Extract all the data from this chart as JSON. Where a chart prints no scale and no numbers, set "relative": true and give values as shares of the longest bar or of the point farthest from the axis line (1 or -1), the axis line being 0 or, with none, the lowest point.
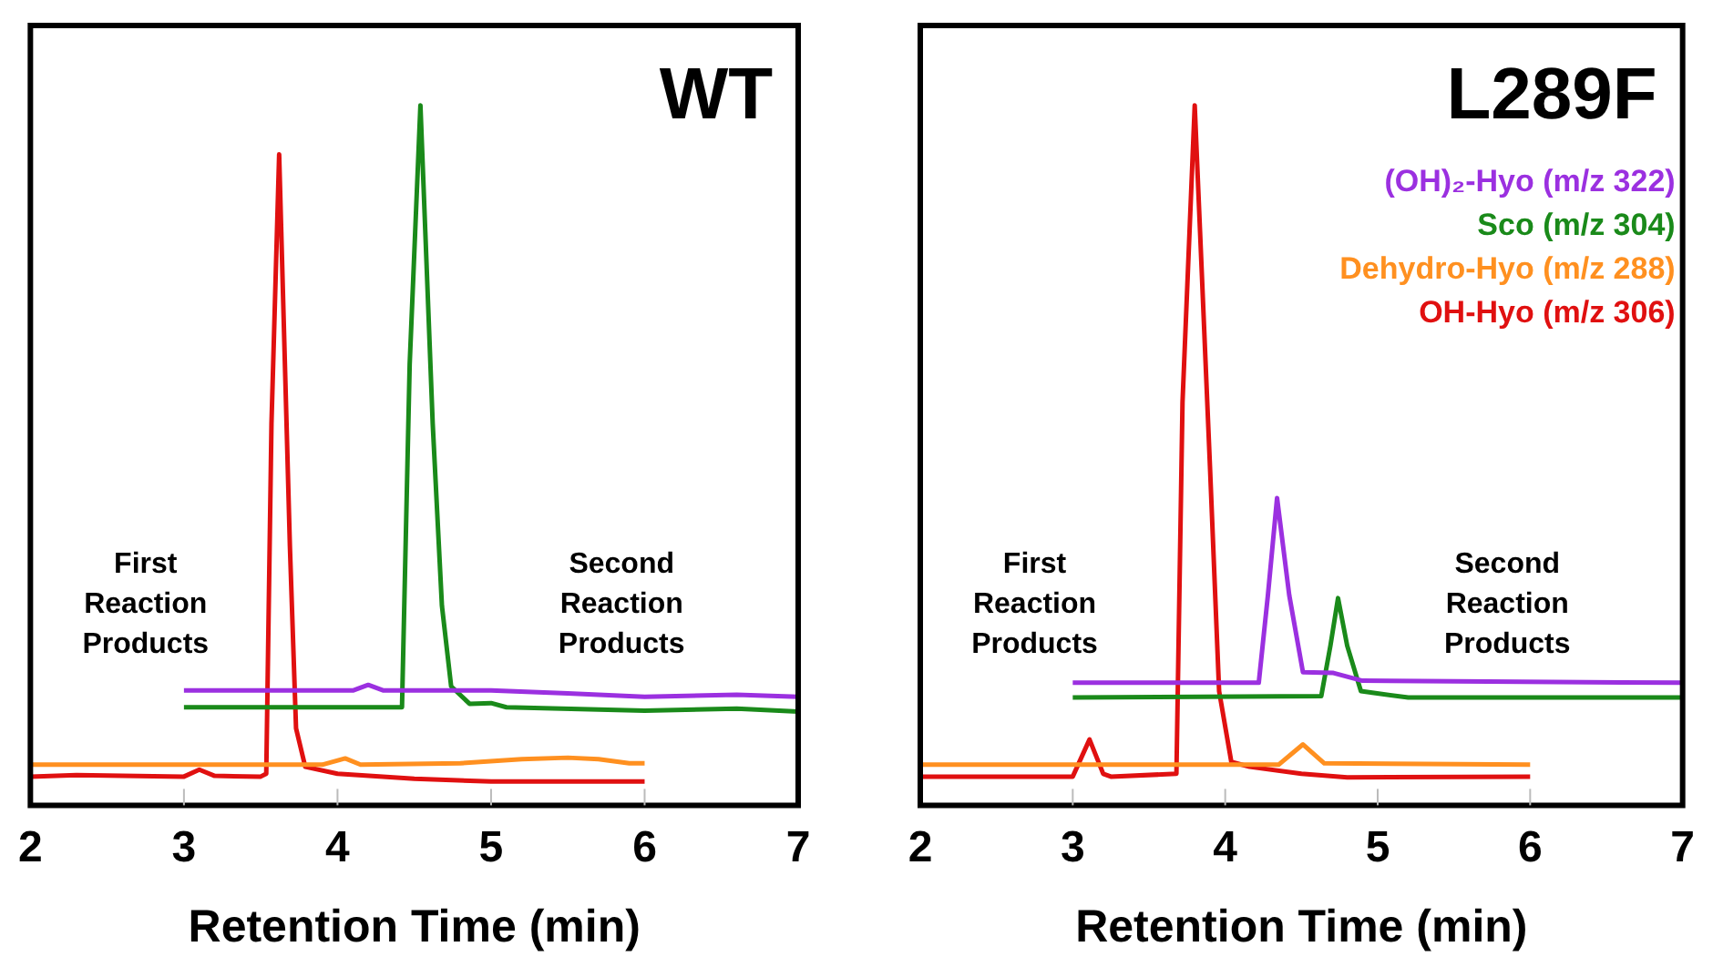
{
  "chart_data": [
    {
      "type": "line",
      "title": "WT",
      "xlabel": "Retention Time (min)",
      "xlim": [
        2,
        7
      ],
      "xticks": [
        2,
        3,
        4,
        5,
        6,
        7
      ],
      "relative": true,
      "grid": false,
      "marker": "none",
      "line_style": "solid",
      "annotations": [
        "First Reaction Products",
        "Second Reaction Products"
      ],
      "series": [
        {
          "color": "#9b30e0",
          "x": [
            3,
            4.1,
            4.2,
            4.3,
            5.0,
            5.5,
            6.0,
            6.6,
            7
          ],
          "values": [
            0.164,
            0.164,
            0.172,
            0.164,
            0.164,
            0.16,
            0.155,
            0.158,
            0.155
          ]
        },
        {
          "color": "#1a8a1a",
          "x": [
            3,
            4.42,
            4.47,
            4.54,
            4.62,
            4.68,
            4.74,
            4.86,
            5.0,
            5.1,
            6.0,
            6.6,
            7
          ],
          "values": [
            0.14,
            0.14,
            0.63,
            1.0,
            0.545,
            0.285,
            0.17,
            0.145,
            0.146,
            0.14,
            0.135,
            0.138,
            0.134
          ]
        },
        {
          "color": "#ff9020",
          "x": [
            2,
            3,
            3.9,
            4.05,
            4.15,
            4.8,
            5.2,
            5.5,
            5.7,
            5.9,
            6
          ],
          "values": [
            0.058,
            0.058,
            0.058,
            0.067,
            0.058,
            0.06,
            0.066,
            0.068,
            0.066,
            0.06,
            0.06
          ]
        },
        {
          "color": "#e01010",
          "x": [
            2,
            2.3,
            3.0,
            3.1,
            3.2,
            3.5,
            3.536,
            3.57,
            3.62,
            3.69,
            3.73,
            3.79,
            4.0,
            4.5,
            5.0,
            6.0
          ],
          "values": [
            0.041,
            0.043,
            0.041,
            0.051,
            0.042,
            0.041,
            0.045,
            0.545,
            0.93,
            0.37,
            0.11,
            0.055,
            0.045,
            0.038,
            0.034,
            0.034
          ]
        }
      ]
    },
    {
      "type": "line",
      "title": "L289F",
      "xlabel": "Retention Time (min)",
      "xlim": [
        2,
        7
      ],
      "xticks": [
        2,
        3,
        4,
        5,
        6,
        7
      ],
      "relative": true,
      "grid": false,
      "marker": "none",
      "line_style": "solid",
      "legend": "top right",
      "annotations": [
        "First Reaction Products",
        "Second Reaction Products"
      ],
      "series": [
        {
          "name": "(OH)₂-Hyo (m/z 322)",
          "color": "#9b30e0",
          "x": [
            3,
            4.22,
            4.28,
            4.34,
            4.42,
            4.51,
            4.71,
            4.9,
            7
          ],
          "values": [
            0.175,
            0.175,
            0.3,
            0.439,
            0.3,
            0.19,
            0.189,
            0.178,
            0.175
          ]
        },
        {
          "name": "Sco (m/z 304)",
          "color": "#1a8a1a",
          "x": [
            3,
            4.63,
            4.69,
            4.74,
            4.8,
            4.89,
            5.2,
            7
          ],
          "values": [
            0.154,
            0.156,
            0.228,
            0.296,
            0.228,
            0.163,
            0.154,
            0.154
          ]
        },
        {
          "name": "Dehydro-Hyo (m/z 288)",
          "color": "#ff9020",
          "x": [
            2,
            4.35,
            4.51,
            4.65,
            6
          ],
          "values": [
            0.058,
            0.058,
            0.087,
            0.06,
            0.058
          ]
        },
        {
          "name": "OH-Hyo (m/z 306)",
          "color": "#e01010",
          "x": [
            2,
            3.0,
            3.11,
            3.2,
            3.25,
            3.68,
            3.72,
            3.8,
            3.9,
            3.96,
            4.04,
            4.16,
            4.5,
            4.8,
            6.0
          ],
          "values": [
            0.041,
            0.041,
            0.094,
            0.045,
            0.041,
            0.045,
            0.576,
            1.0,
            0.484,
            0.163,
            0.062,
            0.055,
            0.045,
            0.04,
            0.041
          ]
        }
      ]
    }
  ]
}
